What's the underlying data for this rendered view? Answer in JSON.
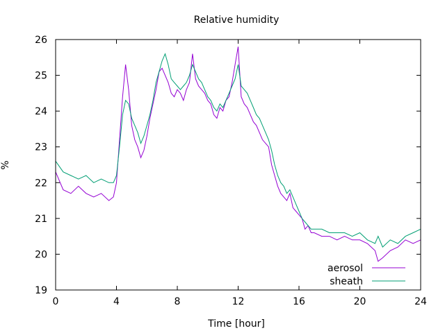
{
  "chart_data": {
    "type": "line",
    "title": "Relative humidity",
    "xlabel": "Time [hour]",
    "ylabel": "%",
    "xlim": [
      0,
      24
    ],
    "ylim": [
      19,
      26
    ],
    "xticks": [
      0,
      4,
      8,
      12,
      16,
      20,
      24
    ],
    "yticks": [
      19,
      20,
      21,
      22,
      23,
      24,
      25,
      26
    ],
    "grid": false,
    "legend_position": "bottom-right",
    "series": [
      {
        "name": "aerosol",
        "color": "#9400d3",
        "x": [
          0,
          0.5,
          1,
          1.5,
          2,
          2.5,
          3,
          3.5,
          3.8,
          4,
          4.2,
          4.4,
          4.6,
          4.8,
          5,
          5.2,
          5.4,
          5.6,
          5.8,
          6,
          6.2,
          6.4,
          6.6,
          6.8,
          7,
          7.2,
          7.4,
          7.6,
          7.8,
          8,
          8.2,
          8.4,
          8.6,
          8.8,
          9,
          9.2,
          9.4,
          9.6,
          9.8,
          10,
          10.2,
          10.4,
          10.6,
          10.8,
          11,
          11.2,
          11.4,
          11.6,
          11.8,
          12,
          12.2,
          12.4,
          12.6,
          12.8,
          13,
          13.2,
          13.4,
          13.6,
          13.8,
          14,
          14.2,
          14.4,
          14.6,
          14.8,
          15,
          15.2,
          15.4,
          15.6,
          15.8,
          16,
          16.2,
          16.4,
          16.6,
          16.8,
          17,
          17.5,
          18,
          18.5,
          19,
          19.5,
          20,
          20.5,
          21,
          21.2,
          21.5,
          22,
          22.5,
          23,
          23.5,
          24
        ],
        "y": [
          22.3,
          21.8,
          21.7,
          21.9,
          21.7,
          21.6,
          21.7,
          21.5,
          21.6,
          22.0,
          23.2,
          24.4,
          25.3,
          24.6,
          23.6,
          23.2,
          23.0,
          22.7,
          22.9,
          23.3,
          23.8,
          24.2,
          24.6,
          25.1,
          25.2,
          25.0,
          24.8,
          24.5,
          24.4,
          24.6,
          24.5,
          24.3,
          24.6,
          24.8,
          25.6,
          24.9,
          24.7,
          24.6,
          24.5,
          24.3,
          24.2,
          23.9,
          23.8,
          24.1,
          24.0,
          24.3,
          24.4,
          24.8,
          25.3,
          25.8,
          24.4,
          24.2,
          24.1,
          23.9,
          23.7,
          23.6,
          23.4,
          23.2,
          23.1,
          23.0,
          22.5,
          22.2,
          21.9,
          21.7,
          21.6,
          21.5,
          21.7,
          21.3,
          21.2,
          21.1,
          21.0,
          20.7,
          20.8,
          20.6,
          20.6,
          20.5,
          20.5,
          20.4,
          20.5,
          20.4,
          20.4,
          20.3,
          20.1,
          19.8,
          19.9,
          20.1,
          20.2,
          20.4,
          20.3,
          20.4
        ]
      },
      {
        "name": "sheath",
        "color": "#009e73",
        "x": [
          0,
          0.5,
          1,
          1.5,
          2,
          2.5,
          3,
          3.5,
          3.8,
          4,
          4.2,
          4.4,
          4.6,
          4.8,
          5,
          5.2,
          5.4,
          5.6,
          5.8,
          6,
          6.2,
          6.4,
          6.6,
          6.8,
          7,
          7.2,
          7.4,
          7.6,
          7.8,
          8,
          8.2,
          8.4,
          8.6,
          8.8,
          9,
          9.2,
          9.4,
          9.6,
          9.8,
          10,
          10.2,
          10.4,
          10.6,
          10.8,
          11,
          11.2,
          11.4,
          11.6,
          11.8,
          12,
          12.2,
          12.4,
          12.6,
          12.8,
          13,
          13.2,
          13.4,
          13.6,
          13.8,
          14,
          14.2,
          14.4,
          14.6,
          14.8,
          15,
          15.2,
          15.4,
          15.6,
          15.8,
          16,
          16.2,
          16.4,
          16.6,
          16.8,
          17,
          17.5,
          18,
          18.5,
          19,
          19.5,
          20,
          20.5,
          21,
          21.2,
          21.5,
          22,
          22.5,
          23,
          23.5,
          24
        ],
        "y": [
          22.6,
          22.3,
          22.2,
          22.1,
          22.2,
          22.0,
          22.1,
          22.0,
          22.0,
          22.2,
          23.0,
          23.9,
          24.3,
          24.2,
          23.8,
          23.6,
          23.4,
          23.1,
          23.3,
          23.6,
          23.9,
          24.3,
          24.8,
          25.1,
          25.4,
          25.6,
          25.3,
          24.9,
          24.8,
          24.7,
          24.6,
          24.7,
          24.8,
          25.0,
          25.3,
          25.1,
          24.9,
          24.8,
          24.6,
          24.4,
          24.3,
          24.1,
          24.0,
          24.2,
          24.1,
          24.3,
          24.5,
          24.7,
          24.9,
          25.3,
          24.7,
          24.6,
          24.5,
          24.3,
          24.1,
          23.9,
          23.8,
          23.6,
          23.4,
          23.2,
          22.9,
          22.5,
          22.2,
          22.0,
          21.9,
          21.7,
          21.8,
          21.6,
          21.4,
          21.2,
          21.0,
          20.9,
          20.8,
          20.7,
          20.7,
          20.7,
          20.6,
          20.6,
          20.6,
          20.5,
          20.6,
          20.4,
          20.3,
          20.5,
          20.2,
          20.4,
          20.3,
          20.5,
          20.6,
          20.7
        ]
      }
    ]
  }
}
